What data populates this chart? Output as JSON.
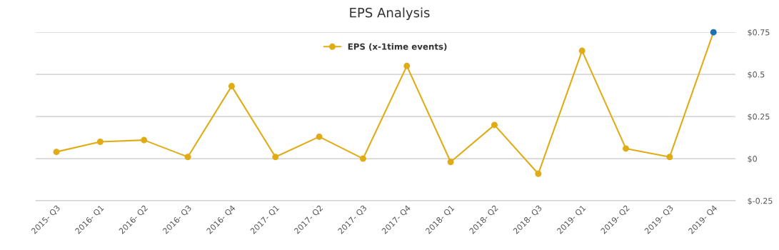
{
  "chart_data": {
    "type": "line",
    "title": "EPS Analysis",
    "categories": [
      "2015- Q3",
      "2016- Q1",
      "2016- Q2",
      "2016- Q3",
      "2016- Q4",
      "2017- Q1",
      "2017- Q2",
      "2017- Q3",
      "2017- Q4",
      "2018- Q1",
      "2018- Q2",
      "2018- Q3",
      "2019- Q1",
      "2019- Q2",
      "2019- Q3",
      "2019- Q4"
    ],
    "series": [
      {
        "name": "EPS (x-1time events)",
        "color": "#e0ac16",
        "colors": [
          "#e0ac16",
          "#e0ac16",
          "#e0ac16",
          "#e0ac16",
          "#e0ac16",
          "#e0ac16",
          "#e0ac16",
          "#e0ac16",
          "#e0ac16",
          "#e0ac16",
          "#e0ac16",
          "#e0ac16",
          "#e0ac16",
          "#e0ac16",
          "#e0ac16",
          "#1a73b0"
        ],
        "values": [
          0.04,
          0.1,
          0.11,
          0.01,
          0.43,
          0.01,
          0.13,
          0.0,
          0.55,
          -0.02,
          0.2,
          -0.09,
          0.64,
          0.06,
          0.01,
          0.75
        ]
      }
    ],
    "ylim": [
      -0.25,
      0.75
    ],
    "yticks": [
      {
        "value": -0.25,
        "label": "$-0.25"
      },
      {
        "value": 0,
        "label": "$0"
      },
      {
        "value": 0.25,
        "label": "$0.25"
      },
      {
        "value": 0.5,
        "label": "$0.5"
      },
      {
        "value": 0.75,
        "label": "$0.75"
      }
    ],
    "grid": "y",
    "legend": "top",
    "marker": "circle",
    "line_style": "solid"
  }
}
